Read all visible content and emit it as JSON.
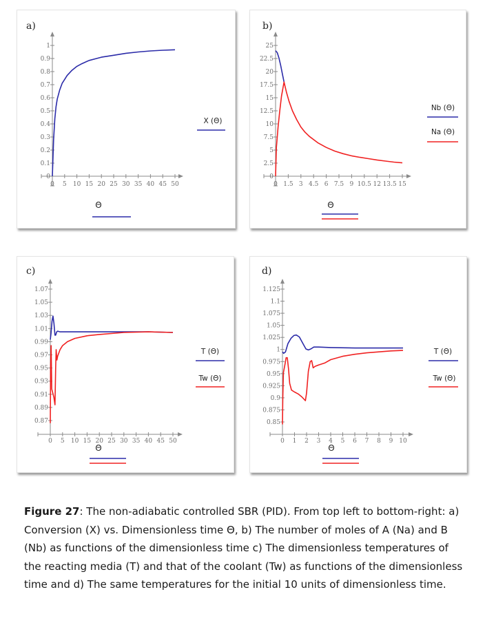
{
  "colors": {
    "blue": "#2a2aa8",
    "red": "#f02020",
    "axis": "#8a8a8a"
  },
  "chart_data": [
    {
      "id": "a",
      "panel_label": "a)",
      "type": "line",
      "xlabel": "Θ",
      "x_ticks": [
        "0",
        "5",
        "10",
        "15",
        "20",
        "25",
        "30",
        "35",
        "40",
        "45",
        "50"
      ],
      "x_tick_values": [
        0,
        5,
        10,
        15,
        20,
        25,
        30,
        35,
        40,
        45,
        50
      ],
      "y_ticks": [
        "0",
        "0.1",
        "0.2",
        "0.3",
        "0.4",
        "0.5",
        "0.6",
        "0.7",
        "0.8",
        "0.9",
        "1"
      ],
      "y_tick_values": [
        0,
        0.1,
        0.2,
        0.3,
        0.4,
        0.5,
        0.6,
        0.7,
        0.8,
        0.9,
        1
      ],
      "xlim": [
        0,
        50
      ],
      "ylim": [
        0,
        1
      ],
      "series": [
        {
          "name": "X (Θ)",
          "color": "blue",
          "x": [
            0,
            0.5,
            1,
            1.5,
            2,
            3,
            4,
            5,
            6,
            7,
            8,
            10,
            12,
            15,
            18,
            20,
            25,
            30,
            35,
            40,
            45,
            50
          ],
          "y": [
            0,
            0.28,
            0.44,
            0.53,
            0.59,
            0.66,
            0.71,
            0.74,
            0.77,
            0.79,
            0.81,
            0.84,
            0.86,
            0.885,
            0.9,
            0.91,
            0.925,
            0.94,
            0.95,
            0.958,
            0.963,
            0.967
          ]
        }
      ]
    },
    {
      "id": "b",
      "panel_label": "b)",
      "type": "line",
      "xlabel": "Θ",
      "x_ticks": [
        "0",
        "1.5",
        "3",
        "4.5",
        "6",
        "7.5",
        "9",
        "10.5",
        "12",
        "13.5",
        "15"
      ],
      "x_tick_values": [
        0,
        1.5,
        3,
        4.5,
        6,
        7.5,
        9,
        10.5,
        12,
        13.5,
        15
      ],
      "y_ticks": [
        "0",
        "2.5",
        "5",
        "7.5",
        "10",
        "12.5",
        "15",
        "17.5",
        "20",
        "22.5",
        "25"
      ],
      "y_tick_values": [
        0,
        2.5,
        5,
        7.5,
        10,
        12.5,
        15,
        17.5,
        20,
        22.5,
        25
      ],
      "xlim": [
        0,
        15
      ],
      "ylim": [
        0,
        25
      ],
      "series": [
        {
          "name": "Nb (Θ)",
          "color": "blue",
          "x": [
            0,
            0.2,
            0.4,
            0.6,
            0.8,
            1.0
          ],
          "y": [
            24,
            23.6,
            22.6,
            21.2,
            19.6,
            18.0
          ]
        },
        {
          "name": "Na (Θ)",
          "color": "red",
          "x": [
            0,
            0.1,
            0.3,
            0.5,
            0.7,
            1.0,
            1.3,
            1.6,
            2,
            2.5,
            3,
            3.5,
            4,
            5,
            6,
            7,
            8,
            9,
            10,
            11,
            12,
            13,
            14,
            15
          ],
          "y": [
            0,
            5.5,
            9.5,
            12.5,
            15.3,
            18.0,
            16.0,
            14.3,
            12.5,
            10.8,
            9.4,
            8.4,
            7.6,
            6.4,
            5.5,
            4.8,
            4.3,
            3.9,
            3.6,
            3.35,
            3.1,
            2.9,
            2.7,
            2.55
          ]
        }
      ]
    },
    {
      "id": "c",
      "panel_label": "c)",
      "type": "line",
      "xlabel": "Θ",
      "x_ticks": [
        "0",
        "5",
        "10",
        "15",
        "20",
        "25",
        "30",
        "35",
        "40",
        "45",
        "50"
      ],
      "x_tick_values": [
        0,
        5,
        10,
        15,
        20,
        25,
        30,
        35,
        40,
        45,
        50
      ],
      "y_ticks": [
        "0.87",
        "0.89",
        "0.91",
        "0.93",
        "0.95",
        "0.97",
        "0.99",
        "1.01",
        "1.03",
        "1.05",
        "1.07"
      ],
      "y_tick_values": [
        0.87,
        0.89,
        0.91,
        0.93,
        0.95,
        0.97,
        0.99,
        1.01,
        1.03,
        1.05,
        1.07
      ],
      "xlim": [
        0,
        50
      ],
      "ylim": [
        0.87,
        1.07
      ],
      "series": [
        {
          "name": "T (Θ)",
          "color": "blue",
          "x": [
            0,
            0.3,
            0.7,
            1.1,
            1.5,
            1.9,
            2.2,
            2.6,
            3,
            4,
            6,
            10,
            20,
            30,
            40,
            50
          ],
          "y": [
            0.993,
            1.003,
            1.021,
            1.029,
            1.018,
            1.0,
            1.0,
            1.005,
            1.006,
            1.005,
            1.005,
            1.005,
            1.005,
            1.005,
            1.005,
            1.004
          ]
        },
        {
          "name": "Tw (Θ)",
          "color": "red",
          "x": [
            0,
            0.15,
            0.35,
            0.6,
            1.0,
            1.5,
            1.9,
            2.2,
            2.4,
            2.7,
            3,
            4,
            5,
            7,
            10,
            15,
            20,
            30,
            40,
            50
          ],
          "y": [
            0.866,
            0.955,
            0.984,
            0.918,
            0.912,
            0.905,
            0.894,
            0.95,
            0.978,
            0.962,
            0.968,
            0.978,
            0.984,
            0.99,
            0.995,
            0.999,
            1.001,
            1.004,
            1.005,
            1.004
          ]
        }
      ]
    },
    {
      "id": "d",
      "panel_label": "d)",
      "type": "line",
      "xlabel": "Θ",
      "x_ticks": [
        "0",
        "1",
        "2",
        "3",
        "4",
        "5",
        "6",
        "7",
        "8",
        "9",
        "10"
      ],
      "x_tick_values": [
        0,
        1,
        2,
        3,
        4,
        5,
        6,
        7,
        8,
        9,
        10
      ],
      "y_ticks": [
        "0.85",
        "0.875",
        "0.9",
        "0.925",
        "0.95",
        "0.975",
        "1",
        "1.025",
        "1.05",
        "1.075",
        "1.1",
        "1.125"
      ],
      "y_tick_values": [
        0.85,
        0.875,
        0.9,
        0.925,
        0.95,
        0.975,
        1,
        1.025,
        1.05,
        1.075,
        1.1,
        1.125
      ],
      "xlim": [
        0,
        10
      ],
      "ylim": [
        0.85,
        1.125
      ],
      "series": [
        {
          "name": "T (Θ)",
          "color": "blue",
          "x": [
            0,
            0.1,
            0.25,
            0.45,
            0.7,
            0.95,
            1.15,
            1.4,
            1.7,
            1.95,
            2.15,
            2.35,
            2.6,
            3,
            4,
            6,
            8,
            10
          ],
          "y": [
            0.995,
            0.992,
            0.995,
            1.012,
            1.023,
            1.029,
            1.03,
            1.026,
            1.012,
            1.001,
            0.999,
            1.001,
            1.005,
            1.005,
            1.004,
            1.003,
            1.003,
            1.003
          ]
        },
        {
          "name": "Tw (Θ)",
          "color": "red",
          "x": [
            0,
            0.03,
            0.08,
            0.2,
            0.3,
            0.4,
            0.5,
            0.6,
            0.75,
            1.0,
            1.3,
            1.6,
            1.9,
            2.0,
            2.15,
            2.3,
            2.42,
            2.55,
            2.7,
            3,
            3.5,
            4,
            5,
            6,
            7,
            8,
            9,
            10
          ],
          "y": [
            0.845,
            0.9,
            0.952,
            0.968,
            0.983,
            0.983,
            0.96,
            0.93,
            0.916,
            0.912,
            0.908,
            0.902,
            0.894,
            0.91,
            0.955,
            0.975,
            0.977,
            0.962,
            0.965,
            0.968,
            0.972,
            0.979,
            0.986,
            0.99,
            0.993,
            0.995,
            0.997,
            0.998
          ]
        }
      ]
    }
  ],
  "caption": {
    "figure_label": "Figure 27",
    "text": ":  The non-adiabatic controlled SBR (PID).  From top left to bottom-right: a) Conversion (X) vs. Dimensionless time Θ, b) The number of moles of A (Na) and B (Nb) as functions of the dimensionless time c) The dimensionless temperatures of the reacting media (T) and that of the coolant (Tw) as functions of the dimensionless time and d) The same temperatures for the initial 10 units of dimensionless time."
  }
}
